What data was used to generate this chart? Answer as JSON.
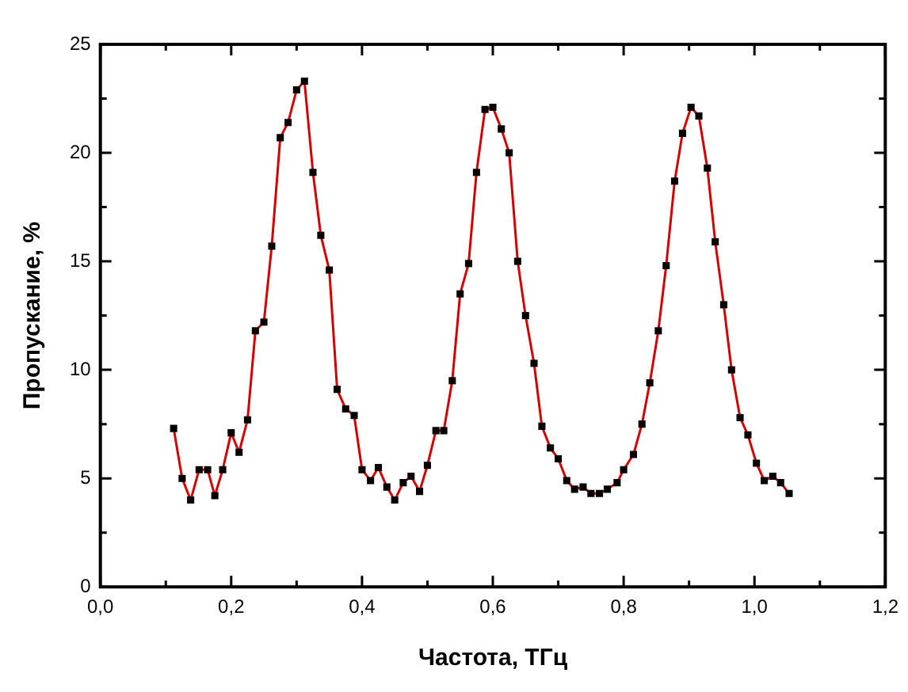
{
  "chart_data": {
    "type": "line",
    "xlabel": "Частота, ТГц",
    "ylabel": "Пропускание, %",
    "xlim": [
      0,
      1.2
    ],
    "xticks": [
      {
        "value": 0,
        "label": "0,0"
      },
      {
        "value": 0.1,
        "label": null
      },
      {
        "value": 0.2,
        "label": "0,2"
      },
      {
        "value": 0.3,
        "label": null
      },
      {
        "value": 0.4,
        "label": "0,4"
      },
      {
        "value": 0.5,
        "label": null
      },
      {
        "value": 0.6,
        "label": "0,6"
      },
      {
        "value": 0.7,
        "label": null
      },
      {
        "value": 0.8,
        "label": "0,8"
      },
      {
        "value": 0.9,
        "label": null
      },
      {
        "value": 1.0,
        "label": "1,0"
      },
      {
        "value": 1.1,
        "label": null
      },
      {
        "value": 1.2,
        "label": "1,2"
      }
    ],
    "ylim": [
      0,
      25
    ],
    "yticks": [
      0,
      {
        "value": 2.5,
        "label": null
      },
      5,
      {
        "value": 7.5,
        "label": null
      },
      10,
      {
        "value": 12.5,
        "label": null
      },
      15,
      {
        "value": 17.5,
        "label": null
      },
      20,
      {
        "value": 22.5,
        "label": null
      },
      25
    ],
    "grid": false,
    "legend": false,
    "marker": "square",
    "line_style": "solid",
    "series": [
      {
        "color": "#d40000",
        "x": [
          0.112,
          0.125,
          0.138,
          0.151,
          0.164,
          0.175,
          0.187,
          0.2,
          0.212,
          0.225,
          0.237,
          0.25,
          0.262,
          0.275,
          0.287,
          0.3,
          0.312,
          0.325,
          0.337,
          0.35,
          0.362,
          0.375,
          0.388,
          0.4,
          0.413,
          0.425,
          0.438,
          0.45,
          0.463,
          0.475,
          0.488,
          0.5,
          0.513,
          0.525,
          0.538,
          0.55,
          0.563,
          0.575,
          0.588,
          0.6,
          0.613,
          0.625,
          0.638,
          0.65,
          0.663,
          0.675,
          0.688,
          0.7,
          0.713,
          0.725,
          0.738,
          0.75,
          0.763,
          0.775,
          0.79,
          0.8,
          0.815,
          0.828,
          0.84,
          0.853,
          0.865,
          0.878,
          0.89,
          0.903,
          0.915,
          0.928,
          0.94,
          0.953,
          0.965,
          0.978,
          0.99,
          1.003,
          1.015,
          1.028,
          1.04,
          1.053
        ],
        "values": [
          7.3,
          5.0,
          4.0,
          5.4,
          5.4,
          4.2,
          5.4,
          7.1,
          6.2,
          7.7,
          11.8,
          12.2,
          15.7,
          20.7,
          21.4,
          22.9,
          23.3,
          19.1,
          16.2,
          14.6,
          9.1,
          8.2,
          7.9,
          5.4,
          4.9,
          5.5,
          4.6,
          4.0,
          4.8,
          5.1,
          4.4,
          5.6,
          7.2,
          7.2,
          9.5,
          13.5,
          14.9,
          19.1,
          22.0,
          22.1,
          21.1,
          20.0,
          15.0,
          12.5,
          10.3,
          7.4,
          6.4,
          5.9,
          4.9,
          4.5,
          4.6,
          4.3,
          4.3,
          4.5,
          4.8,
          5.4,
          6.1,
          7.5,
          9.4,
          11.8,
          14.8,
          18.7,
          20.9,
          22.1,
          21.7,
          19.3,
          15.9,
          13.0,
          10.0,
          7.8,
          7.0,
          5.7,
          4.9,
          5.1,
          4.8,
          4.3
        ]
      }
    ]
  }
}
